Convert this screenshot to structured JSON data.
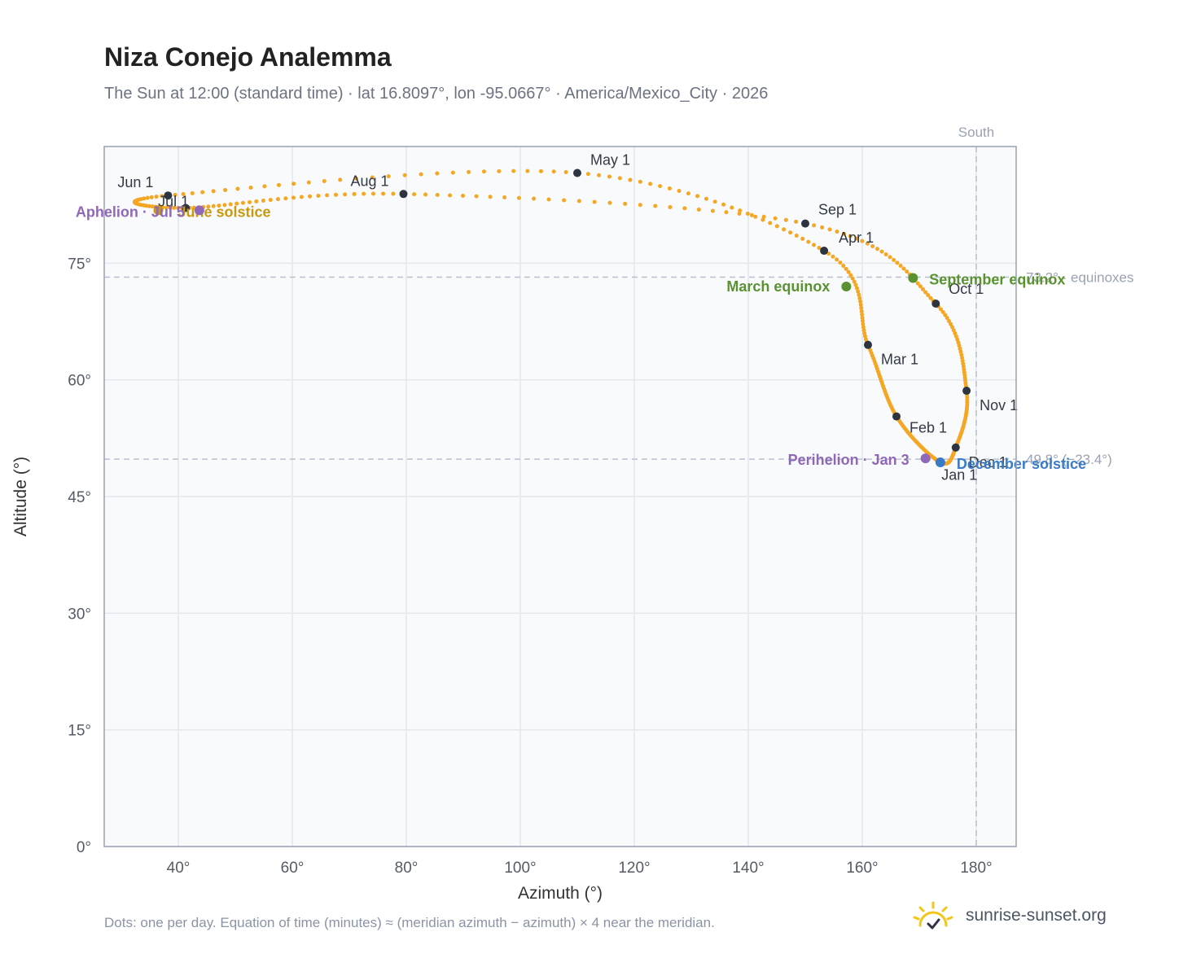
{
  "header": {
    "title": "Niza Conejo Analemma",
    "subtitle": "The Sun at 12:00 (standard time) · lat 16.8097°, lon -95.0667° · America/Mexico_City · 2026"
  },
  "footer": {
    "note": "Dots: one per day. Equation of time (minutes) ≈ (meridian azimuth − azimuth) × 4 near the meridian.",
    "brand": "sunrise-sunset.org",
    "brand_icon": "sun-logo-icon"
  },
  "colors": {
    "curve": "#f5a623",
    "month_marker": "#2d3440",
    "equinox": "#5a9231",
    "december_solstice": "#3a7bc8",
    "june_solstice": "#c99a0e",
    "apsis": "#9068b8",
    "reference_line": "#b8c0cb",
    "plot_bg": "#f8fafc",
    "frame": "#98a2b3"
  },
  "chart_data": {
    "type": "scatter",
    "xlabel": "Azimuth (°)",
    "ylabel": "Altitude (°)",
    "xlim": [
      27,
      187
    ],
    "ylim": [
      0,
      90
    ],
    "x_ticks": [
      40,
      60,
      80,
      100,
      120,
      140,
      160,
      180
    ],
    "x_tick_labels": [
      "40°",
      "60°",
      "80°",
      "100°",
      "120°",
      "140°",
      "160°",
      "180°"
    ],
    "y_ticks": [
      0,
      15,
      30,
      45,
      60,
      75
    ],
    "y_tick_labels": [
      "0°",
      "15°",
      "30°",
      "45°",
      "60°",
      "75°"
    ],
    "grid": true,
    "south_line": {
      "label": "South",
      "azimuth": 180
    },
    "reference_lines": [
      {
        "label": "73.2° · equinoxes",
        "altitude": 73.2
      },
      {
        "label": "49.8° (−23.4°)",
        "altitude": 49.8
      }
    ],
    "curve_points": [
      [
        173.6,
        49.45
      ],
      [
        166.0,
        55.3
      ],
      [
        161.0,
        64.5
      ],
      [
        153.3,
        76.6
      ],
      [
        110.0,
        86.6
      ],
      [
        38.2,
        83.7
      ],
      [
        41.3,
        82.1
      ],
      [
        79.5,
        83.9
      ],
      [
        150.0,
        80.1
      ],
      [
        172.9,
        69.8
      ],
      [
        178.3,
        58.6
      ],
      [
        176.4,
        51.3
      ]
    ],
    "month_markers": [
      {
        "label": "Jan 1",
        "x": 173.6,
        "y": 49.45
      },
      {
        "label": "Feb 1",
        "x": 166.0,
        "y": 55.3
      },
      {
        "label": "Mar 1",
        "x": 161.0,
        "y": 64.5
      },
      {
        "label": "Apr 1",
        "x": 153.3,
        "y": 76.6
      },
      {
        "label": "May 1",
        "x": 110.0,
        "y": 86.6
      },
      {
        "label": "Jun 1",
        "x": 38.2,
        "y": 83.7
      },
      {
        "label": "Jul 1",
        "x": 41.3,
        "y": 82.1
      },
      {
        "label": "Aug 1",
        "x": 79.5,
        "y": 83.9
      },
      {
        "label": "Sep 1",
        "x": 150.0,
        "y": 80.1
      },
      {
        "label": "Oct 1",
        "x": 172.9,
        "y": 69.8
      },
      {
        "label": "Nov 1",
        "x": 178.3,
        "y": 58.6
      },
      {
        "label": "Dec 1",
        "x": 176.4,
        "y": 51.3
      }
    ],
    "events": [
      {
        "label": "March equinox",
        "x": 157.2,
        "y": 72.0
      },
      {
        "label": "September equinox",
        "x": 168.9,
        "y": 73.1
      },
      {
        "label": "December solstice",
        "x": 173.7,
        "y": 49.4
      },
      {
        "label": "June solstice",
        "x": 36.5,
        "y": 81.8
      },
      {
        "label": "Perihelion · Jan 3",
        "x": 171.1,
        "y": 49.9
      },
      {
        "label": "Aphelion · Jul 5",
        "x": 43.7,
        "y": 81.8
      }
    ]
  }
}
